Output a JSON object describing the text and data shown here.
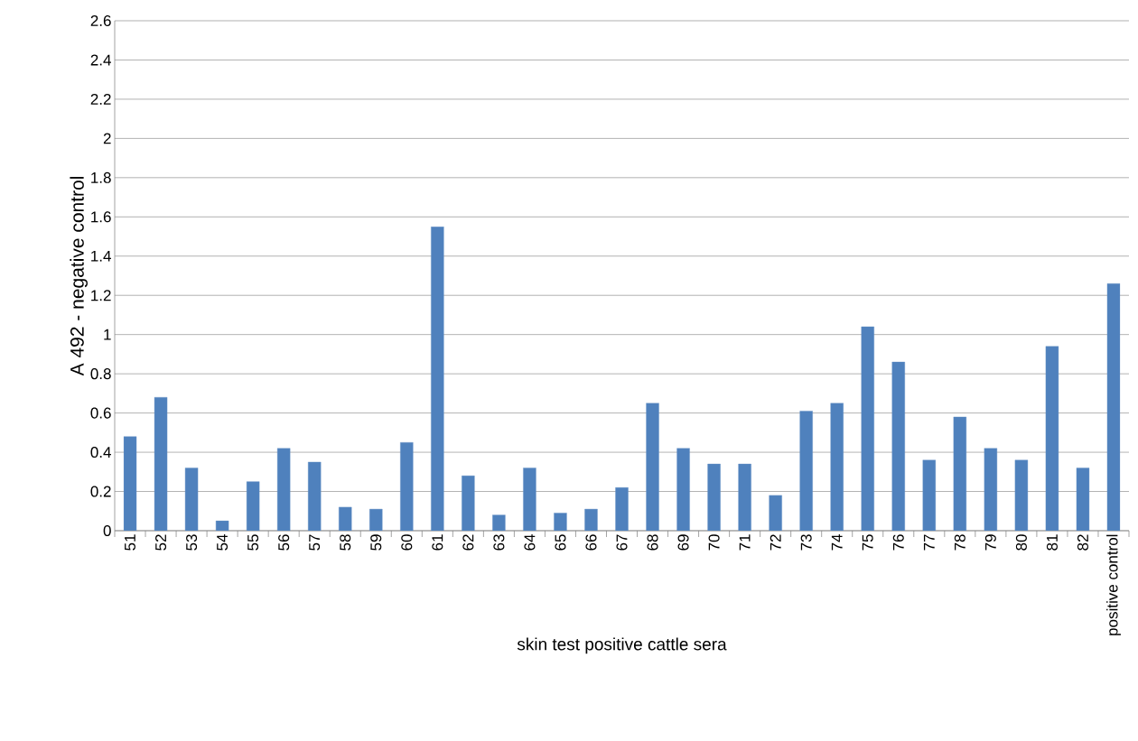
{
  "chart_data": {
    "type": "bar",
    "xlabel": "skin test positive cattle sera",
    "ylabel": "A 492 - negative control",
    "categories": [
      "51",
      "52",
      "53",
      "54",
      "55",
      "56",
      "57",
      "58",
      "59",
      "60",
      "61",
      "62",
      "63",
      "64",
      "65",
      "66",
      "67",
      "68",
      "69",
      "70",
      "71",
      "72",
      "73",
      "74",
      "75",
      "76",
      "77",
      "78",
      "79",
      "80",
      "81",
      "82",
      "positive control"
    ],
    "values": [
      0.48,
      0.68,
      0.32,
      0.05,
      0.25,
      0.42,
      0.35,
      0.12,
      0.11,
      0.45,
      1.55,
      0.28,
      0.08,
      0.32,
      0.09,
      0.11,
      0.22,
      0.65,
      0.42,
      0.34,
      0.34,
      0.18,
      0.61,
      0.65,
      1.04,
      0.86,
      0.36,
      0.58,
      0.42,
      0.36,
      0.94,
      0.32,
      1.26
    ],
    "color": "#4f81bd",
    "ylim": [
      0,
      2.6
    ],
    "yticks": [
      0,
      0.2,
      0.4,
      0.6,
      0.8,
      1,
      1.2,
      1.4,
      1.6,
      1.8,
      2,
      2.2,
      2.4,
      2.6
    ],
    "grid": "y"
  }
}
